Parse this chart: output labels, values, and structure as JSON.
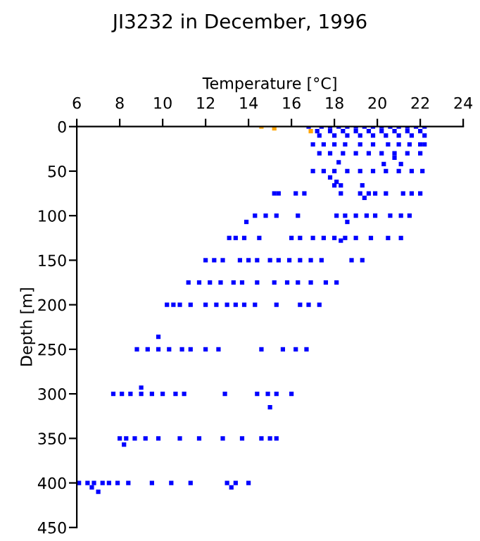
{
  "chart_data": {
    "type": "scatter",
    "title": "JI3232 in December, 1996",
    "xlabel": "Temperature [°C]",
    "ylabel": "Depth [m]",
    "xlim": [
      6,
      24
    ],
    "xticks": [
      6,
      8,
      10,
      12,
      14,
      16,
      18,
      20,
      22,
      24
    ],
    "ylim": [
      450,
      0
    ],
    "yticks": [
      0,
      50,
      100,
      150,
      200,
      250,
      300,
      350,
      400,
      450
    ],
    "grid": false,
    "legend": false,
    "marker": "square",
    "series": [
      {
        "color": "#ffa500",
        "x": [
          14.6,
          15.2,
          16.9
        ],
        "values": [
          0,
          2,
          5
        ]
      },
      {
        "color": "#0000ff",
        "x": [
          16.8,
          17.4,
          17.8,
          18.2,
          18.6,
          19.0,
          19.4,
          19.8,
          20.2,
          20.6,
          21.0,
          21.4,
          21.8,
          22.2
        ],
        "values": [
          0,
          0,
          0,
          0,
          0,
          0,
          0,
          0,
          0,
          0,
          0,
          0,
          0,
          0
        ]
      },
      {
        "color": "#0000ff",
        "x": [
          17.2,
          17.8,
          18.4,
          19.0,
          19.6,
          20.2,
          20.8,
          21.4,
          22.0
        ],
        "values": [
          5,
          5,
          5,
          5,
          5,
          5,
          5,
          5,
          5
        ]
      },
      {
        "color": "#0000ff",
        "x": [
          17.3,
          18.0,
          18.6,
          19.2,
          19.8,
          20.4,
          21.0,
          21.6,
          22.2
        ],
        "values": [
          10,
          10,
          10,
          10,
          10,
          10,
          10,
          10,
          10
        ]
      },
      {
        "color": "#0000ff",
        "x": [
          17.0,
          17.5,
          18.0,
          18.5,
          19.2,
          19.8,
          20.5,
          21.0,
          21.5,
          22.0,
          22.2
        ],
        "values": [
          20,
          20,
          20,
          20,
          20,
          20,
          20,
          20,
          20,
          20,
          20
        ]
      },
      {
        "color": "#0000ff",
        "x": [
          17.3,
          17.8,
          18.4,
          19.0,
          19.6,
          20.2,
          20.8,
          21.4,
          22.0
        ],
        "values": [
          30,
          30,
          30,
          30,
          30,
          30,
          30,
          30,
          30
        ]
      },
      {
        "color": "#0000ff",
        "x": [
          20.8,
          18.2,
          20.3,
          21.1
        ],
        "values": [
          35,
          40,
          42,
          42
        ]
      },
      {
        "color": "#0000ff",
        "x": [
          17.0,
          17.5,
          18.0,
          18.6,
          19.2,
          19.8,
          20.4,
          21.0,
          21.6,
          22.1
        ],
        "values": [
          50,
          50,
          50,
          50,
          50,
          50,
          50,
          50,
          50,
          50
        ]
      },
      {
        "color": "#0000ff",
        "x": [
          17.8,
          18.1,
          18.0,
          18.3,
          19.3
        ],
        "values": [
          57,
          62,
          66,
          66,
          66
        ]
      },
      {
        "color": "#0000ff",
        "x": [
          15.2,
          15.4,
          16.2,
          16.6,
          18.3,
          19.2,
          19.6,
          19.9,
          20.4,
          21.2,
          21.6,
          22.0
        ],
        "values": [
          75,
          75,
          75,
          75,
          75,
          75,
          75,
          75,
          75,
          75,
          75,
          75
        ]
      },
      {
        "color": "#0000ff",
        "x": [
          19.4
        ],
        "values": [
          80
        ]
      },
      {
        "color": "#0000ff",
        "x": [
          14.3,
          14.8,
          15.3,
          16.3,
          18.1,
          18.5,
          19.0,
          19.5,
          19.9,
          20.6,
          21.1,
          21.5
        ],
        "values": [
          100,
          100,
          100,
          100,
          100,
          100,
          100,
          100,
          100,
          100,
          100,
          100
        ]
      },
      {
        "color": "#0000ff",
        "x": [
          13.9,
          18.6
        ],
        "values": [
          107,
          107
        ]
      },
      {
        "color": "#0000ff",
        "x": [
          13.1,
          13.4,
          13.8,
          14.5,
          16.0,
          16.4,
          17.0,
          17.5,
          18.0,
          18.5,
          19.0,
          19.7,
          20.5,
          21.1
        ],
        "values": [
          125,
          125,
          125,
          125,
          125,
          125,
          125,
          125,
          125,
          125,
          125,
          125,
          125,
          125
        ]
      },
      {
        "color": "#0000ff",
        "x": [
          18.3
        ],
        "values": [
          128
        ]
      },
      {
        "color": "#0000ff",
        "x": [
          12.0,
          12.4,
          12.8,
          13.6,
          14.0,
          14.4,
          15.0,
          15.4,
          15.9,
          16.4,
          16.9,
          17.4,
          18.8,
          19.3
        ],
        "values": [
          150,
          150,
          150,
          150,
          150,
          150,
          150,
          150,
          150,
          150,
          150,
          150,
          150,
          150
        ]
      },
      {
        "color": "#0000ff",
        "x": [
          11.2,
          11.7,
          12.2,
          12.7,
          13.3,
          13.7,
          14.4,
          15.2,
          15.8,
          16.3,
          16.9,
          17.6,
          18.1
        ],
        "values": [
          175,
          175,
          175,
          175,
          175,
          175,
          175,
          175,
          175,
          175,
          175,
          175,
          175
        ]
      },
      {
        "color": "#0000ff",
        "x": [
          10.2,
          10.5,
          10.8,
          11.3,
          12.0,
          12.5,
          13.0,
          13.4,
          13.8,
          14.3,
          15.3,
          16.4,
          16.8,
          17.3
        ],
        "values": [
          200,
          200,
          200,
          200,
          200,
          200,
          200,
          200,
          200,
          200,
          200,
          200,
          200,
          200
        ]
      },
      {
        "color": "#0000ff",
        "x": [
          9.8
        ],
        "values": [
          236
        ]
      },
      {
        "color": "#0000ff",
        "x": [
          8.8,
          9.3,
          9.8,
          10.3,
          10.9,
          11.3,
          12.0,
          12.6,
          14.6,
          15.6,
          16.2,
          16.7
        ],
        "values": [
          250,
          250,
          250,
          250,
          250,
          250,
          250,
          250,
          250,
          250,
          250,
          250
        ]
      },
      {
        "color": "#0000ff",
        "x": [
          9.0
        ],
        "values": [
          293
        ]
      },
      {
        "color": "#0000ff",
        "x": [
          7.7,
          8.1,
          8.5,
          9.0,
          9.5,
          10.0,
          10.6,
          11.0,
          12.9,
          14.4,
          14.9,
          15.3,
          16.0
        ],
        "values": [
          300,
          300,
          300,
          300,
          300,
          300,
          300,
          300,
          300,
          300,
          300,
          300,
          300
        ]
      },
      {
        "color": "#0000ff",
        "x": [
          15.0
        ],
        "values": [
          315
        ]
      },
      {
        "color": "#0000ff",
        "x": [
          8.0,
          8.3,
          8.7,
          9.2,
          9.8,
          10.8,
          11.7,
          12.8,
          13.7,
          14.6,
          15.0,
          15.3
        ],
        "values": [
          350,
          350,
          350,
          350,
          350,
          350,
          350,
          350,
          350,
          350,
          350,
          350
        ]
      },
      {
        "color": "#0000ff",
        "x": [
          8.2
        ],
        "values": [
          357
        ]
      },
      {
        "color": "#0000ff",
        "x": [
          6.1,
          6.5,
          6.8,
          7.2,
          7.5,
          7.9,
          8.4,
          9.5,
          10.4,
          11.3,
          13.0,
          13.4,
          14.0
        ],
        "values": [
          400,
          400,
          400,
          400,
          400,
          400,
          400,
          400,
          400,
          400,
          400,
          400,
          400
        ]
      },
      {
        "color": "#0000ff",
        "x": [
          6.7,
          13.2,
          7.0
        ],
        "values": [
          405,
          405,
          410
        ]
      }
    ]
  }
}
